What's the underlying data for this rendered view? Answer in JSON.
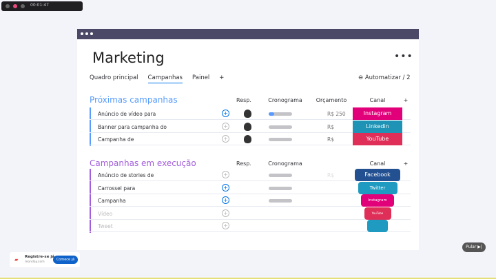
{
  "recorder": {
    "time": "00:01:47"
  },
  "board": {
    "title": "Marketing",
    "tabs": [
      "Quadro principal",
      "Campanhas",
      "Painel",
      "+"
    ],
    "active_tab": "Campanhas",
    "automate": "Automatizar / 2"
  },
  "groups": [
    {
      "title": "Próximas campanhas",
      "color": "#579bfc",
      "headers": [
        "Resp.",
        "Cronograma",
        "Orçamento",
        "Canal",
        "+"
      ],
      "rows": [
        {
          "name": "Anúncio de vídeo para",
          "budget": "R$ 250",
          "channel": "Instagram",
          "channel_color": "#e2007a",
          "update_active": true,
          "progress": 25
        },
        {
          "name": "Banner para campanha do",
          "budget": "R$",
          "channel": "Linkedin",
          "channel_color": "#1e93b5",
          "update_active": false,
          "progress": 0
        },
        {
          "name": "Campanha de",
          "budget": "R$",
          "channel": "YouTube",
          "channel_color": "#df2f58",
          "update_active": false,
          "progress": 0
        }
      ]
    },
    {
      "title": "Campanhas em execução",
      "color": "#a25ddc",
      "headers": [
        "Resp.",
        "Cronograma",
        "Canal",
        "+"
      ],
      "rows": [
        {
          "name": "Anúncio de stories de",
          "budget": "R$",
          "channel": "Facebook",
          "channel_color": "#225091",
          "update_active": false
        },
        {
          "name": "Carrossel para",
          "channel": "Twitter",
          "channel_color": "#1f9ac0",
          "update_active": true
        },
        {
          "name": "Campanha",
          "channel": "Instagram",
          "channel_color": "#e2007a",
          "update_active": true
        },
        {
          "name": "Vídeo",
          "channel": "YouTube",
          "channel_color": "#df2f58",
          "update_active": false
        },
        {
          "name": "Tweet",
          "channel": "",
          "channel_color": "#1f9ac0",
          "update_active": false
        }
      ]
    }
  ],
  "skip_button": "Pular ▶|",
  "signup": {
    "title": "Registre-se já",
    "site": "monday.com",
    "button": "Comece já"
  }
}
